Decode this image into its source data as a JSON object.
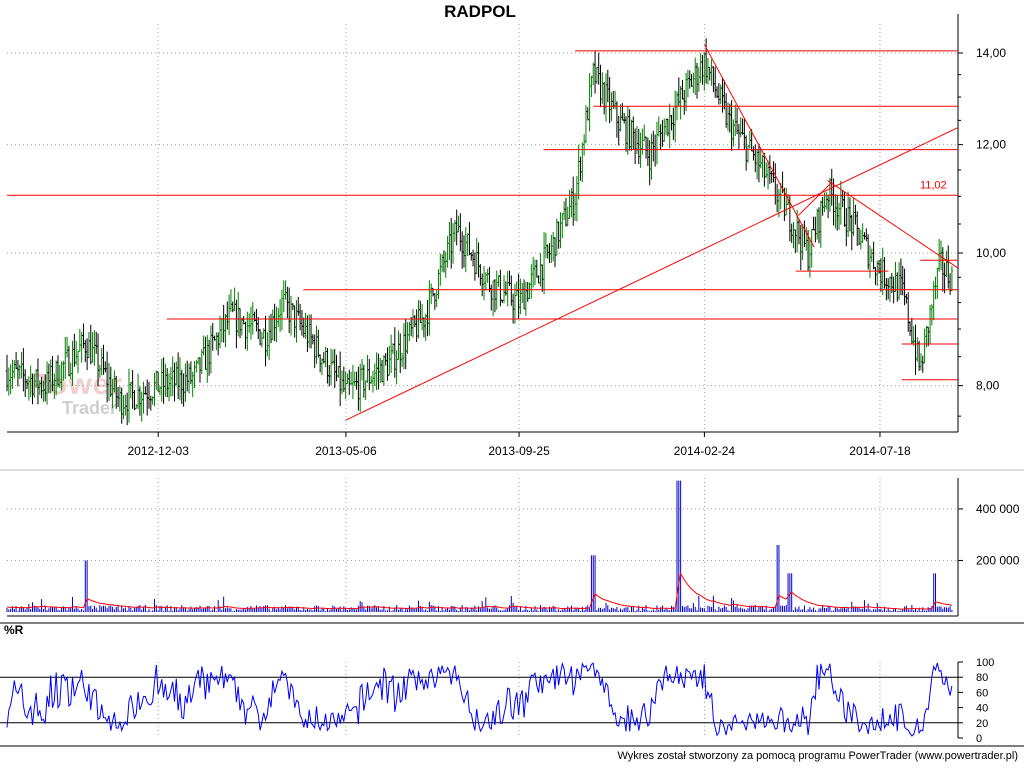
{
  "chart_data": [
    {
      "type": "candlestick",
      "title": "RADPOL",
      "x_tick_labels": [
        "2012-12-03",
        "2013-05-06",
        "2013-09-25",
        "2014-02-24",
        "2014-07-18"
      ],
      "y_tick_labels": [
        "14,00",
        "12,00",
        "10,00",
        "8,00"
      ],
      "ylim": [
        7.4,
        14.7
      ],
      "y_scale": "log",
      "grid": true,
      "annotations": [
        {
          "type": "horizontal_line",
          "value": 11.02,
          "label": "11,02"
        }
      ],
      "price_path": [
        {
          "date": "2012-08-01",
          "value": 8.2
        },
        {
          "date": "2012-09-01",
          "value": 8.0
        },
        {
          "date": "2012-10-05",
          "value": 8.6
        },
        {
          "date": "2012-11-01",
          "value": 7.8
        },
        {
          "date": "2012-12-03",
          "value": 8.0
        },
        {
          "date": "2013-01-01",
          "value": 8.1
        },
        {
          "date": "2013-02-01",
          "value": 9.0
        },
        {
          "date": "2013-03-01",
          "value": 8.7
        },
        {
          "date": "2013-03-15",
          "value": 9.2
        },
        {
          "date": "2013-04-05",
          "value": 8.7
        },
        {
          "date": "2013-05-06",
          "value": 7.9
        },
        {
          "date": "2013-06-10",
          "value": 8.3
        },
        {
          "date": "2013-07-10",
          "value": 9.0
        },
        {
          "date": "2013-08-05",
          "value": 10.4
        },
        {
          "date": "2013-09-01",
          "value": 9.5
        },
        {
          "date": "2013-09-25",
          "value": 9.2
        },
        {
          "date": "2013-10-20",
          "value": 10.0
        },
        {
          "date": "2013-11-10",
          "value": 11.0
        },
        {
          "date": "2013-11-25",
          "value": 13.5
        },
        {
          "date": "2013-12-15",
          "value": 12.5
        },
        {
          "date": "2014-01-10",
          "value": 11.8
        },
        {
          "date": "2014-02-01",
          "value": 12.8
        },
        {
          "date": "2014-02-24",
          "value": 13.8
        },
        {
          "date": "2014-03-15",
          "value": 12.5
        },
        {
          "date": "2014-04-10",
          "value": 11.6
        },
        {
          "date": "2014-05-01",
          "value": 10.8
        },
        {
          "date": "2014-05-20",
          "value": 10.0
        },
        {
          "date": "2014-06-05",
          "value": 11.1
        },
        {
          "date": "2014-06-25",
          "value": 10.5
        },
        {
          "date": "2014-07-18",
          "value": 9.7
        },
        {
          "date": "2014-08-05",
          "value": 9.4
        },
        {
          "date": "2014-08-20",
          "value": 8.2
        },
        {
          "date": "2014-09-05",
          "value": 9.8
        },
        {
          "date": "2014-09-15",
          "value": 9.6
        }
      ]
    },
    {
      "type": "bar",
      "name": "volume",
      "y_tick_labels": [
        "400 000",
        "200 000"
      ],
      "ylim": [
        0,
        520000
      ],
      "spikes": [
        {
          "date": "2012-10-05",
          "value": 200000
        },
        {
          "date": "2013-11-25",
          "value": 220000
        },
        {
          "date": "2014-02-03",
          "value": 510000
        },
        {
          "date": "2014-04-25",
          "value": 260000
        },
        {
          "date": "2014-05-05",
          "value": 150000
        },
        {
          "date": "2014-09-01",
          "value": 150000
        }
      ],
      "typical_value": 20000
    },
    {
      "type": "line",
      "name": "%R",
      "y_tick_labels": [
        "100",
        "80",
        "60",
        "40",
        "20",
        "0"
      ],
      "ylim": [
        0,
        100
      ],
      "reference_lines": [
        20,
        80
      ]
    }
  ],
  "panel_label": "%R",
  "watermark": {
    "line1": "Power",
    "line2": "Trader"
  },
  "footer": "Wykres został stworzony za pomocą programu PowerTrader (www.powertrader.pl)",
  "colors": {
    "up": "#008000",
    "down": "#000000",
    "trendline": "#ff0000",
    "volume": "#0000cc",
    "volume_avg": "#ff0000",
    "wpr": "#0000ff",
    "grid": "#a0a0a0"
  }
}
